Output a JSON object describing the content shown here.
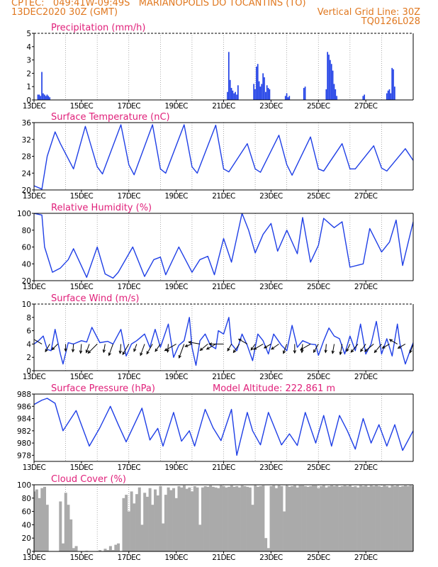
{
  "header": {
    "line1": "CPTEC:   049:41W-09:49S   MARIANOPOLIS DO TOCANTINS (TO)",
    "line2": "13DEC2020 30Z (GMT)",
    "vgrid": "Vertical Grid Line: 30Z",
    "code": "TQ0126L028"
  },
  "colors": {
    "header": "#e07820",
    "titles": "#e0207a",
    "series": "#1f3fe6",
    "cloud": "#aaaaaa",
    "arrows": "#000000"
  },
  "chart_data": [
    {
      "id": "precip",
      "type": "bar",
      "title": "Precipitation (mm/h)",
      "ylim": [
        0,
        5
      ],
      "yticks": [
        0,
        1,
        2,
        3,
        4,
        5
      ],
      "xticklabels": [
        "13DEC",
        "15DEC",
        "17DEC",
        "19DEC",
        "21DEC",
        "23DEC",
        "25DEC",
        "27DEC"
      ],
      "series": [
        {
          "hours": [
            3,
            4,
            5,
            6,
            7,
            8,
            9,
            10,
            11,
            12,
            147,
            148,
            149,
            150,
            151,
            152,
            153,
            154,
            155,
            167,
            168,
            169,
            170,
            171,
            172,
            173,
            174,
            175,
            176,
            177,
            178,
            179,
            191,
            192,
            193,
            194,
            205,
            206,
            222,
            223,
            224,
            225,
            226,
            227,
            228,
            229,
            230,
            250,
            251,
            268,
            269,
            270,
            271,
            272,
            273,
            274
          ],
          "values": [
            0.4,
            0.4,
            0.3,
            2.1,
            0.5,
            0.4,
            0.3,
            0.4,
            0.3,
            0.2,
            0.6,
            3.6,
            1.5,
            0.9,
            0.7,
            0.5,
            0.6,
            0.4,
            1.1,
            1.2,
            0.8,
            2.5,
            2.7,
            1.4,
            1.0,
            1.2,
            2.0,
            1.7,
            0.6,
            1.1,
            0.9,
            0.8,
            0.3,
            0.5,
            0.2,
            0.3,
            0.9,
            1.0,
            0.8,
            3.6,
            3.4,
            3.0,
            2.7,
            2.2,
            1.2,
            0.8,
            0.3,
            0.3,
            0.4,
            0.5,
            0.7,
            0.8,
            0.5,
            2.4,
            2.3,
            1.0
          ]
        }
      ]
    },
    {
      "id": "temp",
      "type": "line",
      "title": "Surface Temperature (nC)",
      "ylim": [
        20,
        36
      ],
      "yticks": [
        20,
        24,
        28,
        32,
        36
      ],
      "xticklabels": [
        "13DEC",
        "15DEC",
        "17DEC",
        "19DEC",
        "21DEC",
        "23DEC",
        "25DEC",
        "27DEC"
      ],
      "series": [
        {
          "hours": [
            0,
            6,
            10,
            16,
            20,
            30,
            39,
            48,
            52,
            66,
            72,
            76,
            90,
            96,
            100,
            114,
            120,
            124,
            138,
            144,
            148,
            162,
            168,
            172,
            186,
            192,
            196,
            210,
            216,
            220,
            234,
            240,
            244,
            258,
            264,
            268,
            282,
            288
          ],
          "values": [
            21.0,
            20.2,
            28.0,
            33.8,
            31.0,
            25.0,
            35.1,
            25.5,
            23.8,
            35.5,
            26.0,
            23.6,
            35.5,
            25.0,
            24.0,
            35.5,
            25.5,
            24.0,
            35.4,
            25.0,
            24.3,
            31.0,
            25.0,
            24.2,
            33.0,
            26.0,
            23.5,
            32.6,
            25.0,
            24.5,
            31.0,
            25.0,
            25.0,
            30.5,
            25.2,
            24.5,
            29.8,
            27.0
          ]
        }
      ]
    },
    {
      "id": "rh",
      "type": "line",
      "title": "Relative Humidity (%)",
      "ylim": [
        20,
        100
      ],
      "yticks": [
        20,
        40,
        60,
        80,
        100
      ],
      "xticklabels": [
        "13DEC",
        "15DEC",
        "17DEC",
        "19DEC",
        "21DEC",
        "23DEC",
        "25DEC",
        "27DEC"
      ],
      "series": [
        {
          "hours": [
            0,
            6,
            8,
            14,
            20,
            26,
            30,
            40,
            48,
            54,
            60,
            64,
            75,
            84,
            91,
            96,
            100,
            110,
            120,
            126,
            132,
            137,
            144,
            150,
            158,
            163,
            168,
            174,
            180,
            185,
            192,
            200,
            204,
            210,
            216,
            220,
            228,
            234,
            240,
            250,
            255,
            264,
            270,
            275,
            280,
            288
          ],
          "values": [
            100,
            98,
            60,
            30,
            35,
            45,
            58,
            24,
            60,
            28,
            23,
            30,
            60,
            25,
            45,
            48,
            27,
            60,
            30,
            45,
            49,
            27,
            70,
            42,
            100,
            80,
            53,
            75,
            88,
            55,
            80,
            52,
            95,
            42,
            62,
            94,
            83,
            90,
            36,
            40,
            82,
            54,
            66,
            92,
            38,
            90
          ]
        }
      ]
    },
    {
      "id": "wind",
      "type": "line",
      "title": "Surface Wind (m/s)",
      "ylim": [
        0,
        10
      ],
      "yticks": [
        0,
        2,
        4,
        6,
        8,
        10
      ],
      "xticklabels": [
        "13DEC",
        "15DEC",
        "17DEC",
        "19DEC",
        "21DEC",
        "23DEC",
        "25DEC",
        "27DEC"
      ],
      "series": [
        {
          "hours": [
            0,
            4,
            7,
            10,
            13,
            16,
            20,
            22,
            26,
            30,
            36,
            40,
            44,
            50,
            56,
            60,
            66,
            70,
            74,
            78,
            84,
            88,
            92,
            96,
            102,
            106,
            110,
            114,
            118,
            120,
            123,
            126,
            130,
            134,
            138,
            140,
            144,
            148,
            150,
            154,
            158,
            162,
            166,
            170,
            174,
            178,
            182,
            188,
            192,
            196,
            200,
            204,
            210,
            214,
            216,
            220,
            224,
            228,
            232,
            236,
            240,
            244,
            248,
            252,
            256,
            260,
            264,
            268,
            272,
            276,
            278,
            282,
            286,
            288
          ],
          "values": [
            4.0,
            4.6,
            5.2,
            3.2,
            3.0,
            6.2,
            2.5,
            1.0,
            4.2,
            4.0,
            4.5,
            4.3,
            6.5,
            4.2,
            4.4,
            4.0,
            6.2,
            2.2,
            4.0,
            4.5,
            5.5,
            3.5,
            6.2,
            3.5,
            7.0,
            2.0,
            3.8,
            4.5,
            8.0,
            3.5,
            0.8,
            4.5,
            5.5,
            3.8,
            3.3,
            6.0,
            5.5,
            8.0,
            4.0,
            3.0,
            5.5,
            3.8,
            1.5,
            5.5,
            4.5,
            2.5,
            5.5,
            3.8,
            3.0,
            6.8,
            3.5,
            4.5,
            4.0,
            3.9,
            2.3,
            4.5,
            6.4,
            5.2,
            4.8,
            2.5,
            5.2,
            3.0,
            7.0,
            2.5,
            4.0,
            7.4,
            2.5,
            4.8,
            2.2,
            7.0,
            4.0,
            1.0,
            3.2,
            4.2
          ]
        }
      ],
      "arrows": {
        "hours": [
          6,
          12,
          18,
          24,
          30,
          36,
          42,
          48,
          54,
          60,
          66,
          72,
          78,
          84,
          90,
          96,
          102,
          108,
          114,
          120,
          126,
          132,
          138,
          144,
          150,
          156,
          162,
          168,
          174,
          180,
          186,
          192,
          198,
          204,
          210,
          216,
          222,
          228,
          234,
          240,
          246,
          252,
          258,
          264,
          270,
          276,
          282,
          288
        ],
        "dir_deg": [
          300,
          210,
          225,
          180,
          185,
          185,
          200,
          225,
          190,
          200,
          185,
          210,
          200,
          200,
          210,
          215,
          185,
          240,
          200,
          250,
          280,
          230,
          240,
          270,
          210,
          215,
          300,
          215,
          240,
          240,
          235,
          200,
          180,
          185,
          240,
          210,
          185,
          190,
          190,
          205,
          220,
          215,
          230,
          220,
          240,
          300,
          240,
          200
        ],
        "speed": [
          6.3,
          3.7,
          3.2,
          2.5,
          3.0,
          4.0,
          3.9,
          6.6,
          3.4,
          6.0,
          4.1,
          6.0,
          3.0,
          6.0,
          5.5,
          3.8,
          3.2,
          6.8,
          7.9,
          2.6,
          5.5,
          4.5,
          4.8,
          7.6,
          3.0,
          4.8,
          4.5,
          2.6,
          5.0,
          3.0,
          3.9,
          4.5,
          3.8,
          3.5,
          5.6,
          4.2,
          3.5,
          4.2,
          5.0,
          3.2,
          5.0,
          3.9,
          5.6,
          5.3,
          3.3,
          3.8,
          3.4,
          4.0
        ]
      }
    },
    {
      "id": "pressure",
      "type": "line",
      "title": "Surface Pressure (hPa)",
      "annotation": "Model Altitude: 222.861  m",
      "ylim": [
        977,
        988
      ],
      "yticks": [
        978,
        980,
        982,
        984,
        986,
        988
      ],
      "xticklabels": [
        "13DEC",
        "15DEC",
        "17DEC",
        "19DEC",
        "21DEC",
        "23DEC",
        "25DEC",
        "27DEC"
      ],
      "series": [
        {
          "hours": [
            0,
            6,
            10,
            16,
            22,
            32,
            42,
            50,
            58,
            64,
            70,
            82,
            88,
            94,
            98,
            106,
            112,
            118,
            122,
            130,
            136,
            142,
            150,
            154,
            162,
            166,
            172,
            178,
            188,
            194,
            200,
            206,
            214,
            220,
            226,
            232,
            238,
            244,
            250,
            256,
            262,
            268,
            274,
            280,
            288
          ],
          "values": [
            986.3,
            987.0,
            987.3,
            986.5,
            982.0,
            985.3,
            979.5,
            982.5,
            986.0,
            983.0,
            980.2,
            985.7,
            980.5,
            982.4,
            979.5,
            985.0,
            980.3,
            982.0,
            979.5,
            985.5,
            982.5,
            980.4,
            985.5,
            978.0,
            985.0,
            982.0,
            979.7,
            985.0,
            979.7,
            981.5,
            979.6,
            985.0,
            980.0,
            984.5,
            979.5,
            984.5,
            982.0,
            979.0,
            984.0,
            980.0,
            983.0,
            979.5,
            983.0,
            978.8,
            982.0
          ]
        }
      ]
    },
    {
      "id": "cloud",
      "type": "area",
      "title": "Cloud Cover (%)",
      "ylim": [
        0,
        100
      ],
      "yticks": [
        0,
        20,
        40,
        60,
        80,
        100
      ],
      "xticklabels": [
        "13DEC",
        "15DEC",
        "17DEC",
        "19DEC",
        "21DEC",
        "23DEC",
        "25DEC",
        "27DEC"
      ],
      "series": [
        {
          "hours": [
            0,
            2,
            4,
            6,
            8,
            10,
            12,
            14,
            16,
            18,
            20,
            22,
            24,
            26,
            28,
            30,
            32,
            34,
            36,
            38,
            40,
            42,
            44,
            46,
            48,
            50,
            52,
            54,
            56,
            58,
            60,
            62,
            64,
            66,
            68,
            70,
            72,
            74,
            76,
            78,
            80,
            82,
            84,
            86,
            88,
            90,
            92,
            94,
            96,
            98,
            100,
            102,
            104,
            106,
            108,
            110,
            112,
            114,
            116,
            118,
            120,
            122,
            124,
            126,
            128,
            130,
            132,
            134,
            136,
            138,
            140,
            142,
            144,
            146,
            148,
            150,
            152,
            154,
            156,
            158,
            160,
            162,
            164,
            166,
            168,
            170,
            172,
            174,
            176,
            178,
            180,
            182,
            184,
            186,
            188,
            190,
            192,
            194,
            196,
            198,
            200,
            202,
            204,
            206,
            208,
            210,
            212,
            214,
            216,
            218,
            220,
            222,
            224,
            226,
            228,
            230,
            232,
            234,
            236,
            238,
            240,
            242,
            244,
            246,
            248,
            250,
            252,
            254,
            256,
            258,
            260,
            262,
            264,
            266,
            268,
            270,
            272,
            274,
            276,
            278,
            280,
            282,
            284,
            286,
            288
          ],
          "values": [
            90,
            93,
            80,
            95,
            97,
            70,
            0,
            0,
            0,
            0,
            75,
            12,
            88,
            70,
            48,
            5,
            8,
            0,
            0,
            0,
            1,
            0,
            0,
            0,
            0,
            2,
            0,
            4,
            2,
            8,
            2,
            10,
            12,
            0,
            80,
            85,
            60,
            90,
            72,
            86,
            96,
            40,
            88,
            82,
            95,
            70,
            93,
            84,
            98,
            42,
            85,
            96,
            92,
            95,
            80,
            98,
            96,
            99,
            94,
            96,
            90,
            98,
            96,
            40,
            96,
            98,
            97,
            99,
            97,
            96,
            95,
            99,
            98,
            96,
            97,
            99,
            97,
            98,
            96,
            99,
            98,
            97,
            96,
            70,
            99,
            97,
            98,
            99,
            20,
            5,
            98,
            99,
            95,
            99,
            98,
            60,
            99,
            97,
            98,
            99,
            96,
            99,
            99,
            98,
            97,
            98,
            99,
            99,
            95,
            98,
            99,
            96,
            98,
            99,
            98,
            99,
            97,
            98,
            99,
            98,
            99,
            97,
            98,
            96,
            99,
            98,
            99,
            97,
            99,
            98,
            99,
            98,
            97,
            99,
            98,
            96,
            99,
            98,
            99,
            97,
            98,
            99,
            98,
            99,
            98
          ]
        }
      ]
    }
  ]
}
